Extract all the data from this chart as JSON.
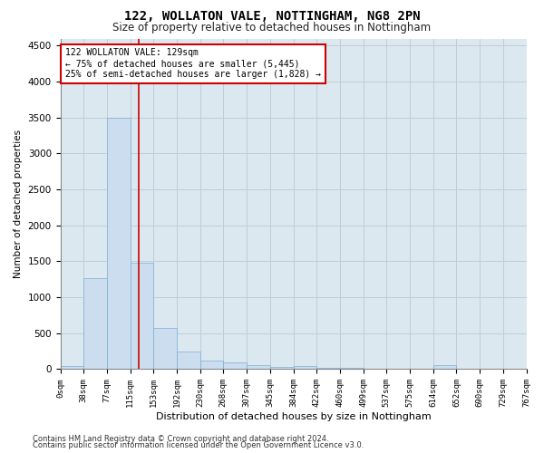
{
  "title": "122, WOLLATON VALE, NOTTINGHAM, NG8 2PN",
  "subtitle": "Size of property relative to detached houses in Nottingham",
  "xlabel": "Distribution of detached houses by size in Nottingham",
  "ylabel": "Number of detached properties",
  "footer_line1": "Contains HM Land Registry data © Crown copyright and database right 2024.",
  "footer_line2": "Contains public sector information licensed under the Open Government Licence v3.0.",
  "bar_color": "#ccddf0",
  "bar_edge_color": "#7aafd4",
  "grid_color": "#c0ccd8",
  "background_color": "#dce8f0",
  "bin_edges": [
    0,
    38,
    77,
    115,
    153,
    192,
    230,
    268,
    307,
    345,
    384,
    422,
    460,
    499,
    537,
    575,
    614,
    652,
    690,
    729,
    767
  ],
  "bin_labels": [
    "0sqm",
    "38sqm",
    "77sqm",
    "115sqm",
    "153sqm",
    "192sqm",
    "230sqm",
    "268sqm",
    "307sqm",
    "345sqm",
    "384sqm",
    "422sqm",
    "460sqm",
    "499sqm",
    "537sqm",
    "575sqm",
    "614sqm",
    "652sqm",
    "690sqm",
    "729sqm",
    "767sqm"
  ],
  "bar_heights": [
    40,
    1270,
    3500,
    1480,
    570,
    240,
    120,
    90,
    55,
    30,
    50,
    20,
    15,
    10,
    8,
    5,
    55,
    5,
    3,
    2
  ],
  "red_line_x": 129,
  "annotation_line1": "122 WOLLATON VALE: 129sqm",
  "annotation_line2": "← 75% of detached houses are smaller (5,445)",
  "annotation_line3": "25% of semi-detached houses are larger (1,828) →",
  "annotation_box_color": "#ffffff",
  "annotation_box_edge": "#cc0000",
  "red_line_color": "#cc0000",
  "ylim": [
    0,
    4600
  ],
  "xlim": [
    0,
    767
  ],
  "yticks": [
    0,
    500,
    1000,
    1500,
    2000,
    2500,
    3000,
    3500,
    4000,
    4500
  ]
}
